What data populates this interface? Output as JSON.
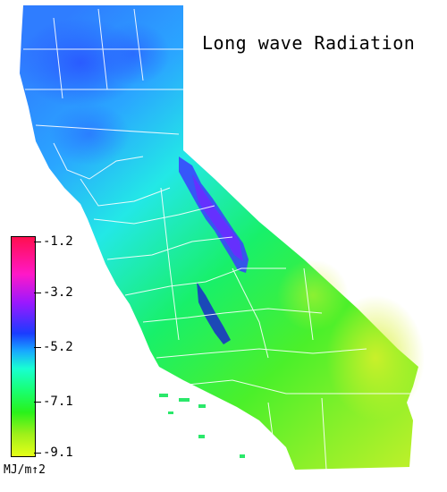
{
  "title": "Long wave Radiation",
  "legend": {
    "ticks": [
      "-1.2",
      "-3.2",
      "-5.2",
      "-7.1",
      "-9.1"
    ],
    "unit": "MJ/m↑2"
  },
  "colors": {
    "north_blue": "#2f7dff",
    "central_cyan": "#23e8e6",
    "central_green": "#18f06a",
    "south_green": "#4bf02a",
    "southeast_yellow_green": "#b8f02a",
    "sierra_purple": "#6a2cff",
    "county_lines": "#ffffff"
  }
}
